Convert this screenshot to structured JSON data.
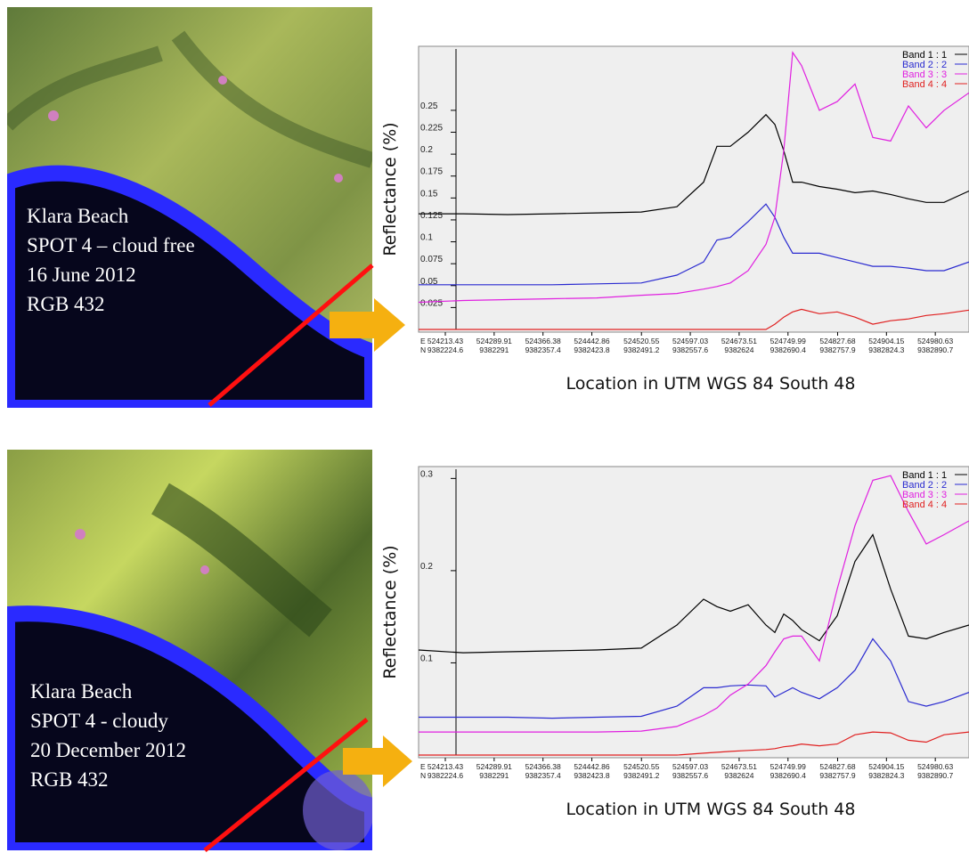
{
  "images": [
    {
      "lines": [
        "Klara Beach",
        "SPOT 4 – cloud free",
        "16 June 2012",
        "RGB 432"
      ]
    },
    {
      "lines": [
        "Klara Beach",
        "SPOT 4 - cloudy",
        "20 December 2012",
        "RGB 432"
      ]
    }
  ],
  "chart_data": [
    {
      "type": "line",
      "y_label": "Reflectance (%)",
      "x_label": "Location in UTM WGS 84 South 48",
      "x_row_labels": [
        "E",
        "N"
      ],
      "xlim": [
        524171.6,
        525033.4
      ],
      "xticks": [
        524213.43,
        524289.91,
        524366.38,
        524442.86,
        524520.55,
        524597.03,
        524673.51,
        524749.99,
        524827.68,
        524904.15,
        524980.63
      ],
      "xticks_n": [
        "9382224.6",
        "9382291",
        "9382357.4",
        "9382423.8",
        "9382491.2",
        "9382557.6",
        "9382624",
        "9382690.4",
        "9382757.9",
        "9382824.3",
        "9382890.7"
      ],
      "ylim": [
        0,
        0.32
      ],
      "yticks": [
        0.025,
        0.05,
        0.075,
        0.1,
        0.125,
        0.15,
        0.175,
        0.2,
        0.225,
        0.25
      ],
      "legend": "top-right",
      "x": [
        524171.6,
        524241.3,
        524311.0,
        524380.8,
        524450.5,
        524520.2,
        524576.0,
        524617.8,
        524638.7,
        524659.7,
        524687.6,
        524715.4,
        524729.4,
        524743.3,
        524757.3,
        524771.2,
        524799.1,
        524827.0,
        524854.9,
        524882.8,
        524910.7,
        524938.6,
        524966.5,
        524994.4,
        525033.4
      ],
      "series": [
        {
          "name": "Band 1 : 1",
          "color": "#000000",
          "values": [
            0.132,
            0.132,
            0.131,
            0.132,
            0.133,
            0.134,
            0.14,
            0.168,
            0.209,
            0.209,
            0.225,
            0.245,
            0.234,
            0.204,
            0.168,
            0.168,
            0.163,
            0.16,
            0.156,
            0.158,
            0.154,
            0.149,
            0.145,
            0.145,
            0.158
          ]
        },
        {
          "name": "Band 2 : 2",
          "color": "#2a2ad0",
          "values": [
            0.051,
            0.051,
            0.051,
            0.051,
            0.052,
            0.053,
            0.062,
            0.077,
            0.102,
            0.105,
            0.123,
            0.143,
            0.128,
            0.105,
            0.087,
            0.087,
            0.087,
            0.082,
            0.077,
            0.072,
            0.072,
            0.07,
            0.067,
            0.067,
            0.077
          ]
        },
        {
          "name": "Band 3 : 3",
          "color": "#e020e0",
          "values": [
            0.031,
            0.033,
            0.034,
            0.035,
            0.036,
            0.039,
            0.041,
            0.046,
            0.049,
            0.053,
            0.067,
            0.097,
            0.128,
            0.204,
            0.316,
            0.301,
            0.25,
            0.26,
            0.28,
            0.219,
            0.215,
            0.255,
            0.23,
            0.25,
            0.27
          ]
        },
        {
          "name": "Band 4 : 4",
          "color": "#e02020",
          "values": [
            0,
            0,
            0,
            0,
            0,
            0,
            0,
            0,
            0,
            0,
            0,
            0,
            0.006,
            0.014,
            0.02,
            0.023,
            0.018,
            0.02,
            0.014,
            0.006,
            0.01,
            0.012,
            0.016,
            0.018,
            0.022
          ]
        }
      ]
    },
    {
      "type": "line",
      "y_label": "Reflectance (%)",
      "x_label": "Location in UTM WGS 84 South 48",
      "x_row_labels": [
        "E",
        "N"
      ],
      "xlim": [
        524171.6,
        525033.4
      ],
      "xticks": [
        524213.43,
        524289.91,
        524366.38,
        524442.86,
        524520.55,
        524597.03,
        524673.51,
        524749.99,
        524827.68,
        524904.15,
        524980.63
      ],
      "xticks_n": [
        "9382224.6",
        "9382291",
        "9382357.4",
        "9382423.8",
        "9382491.2",
        "9382557.6",
        "9382624",
        "9382690.4",
        "9382757.9",
        "9382824.3",
        "9382890.7"
      ],
      "ylim": [
        0,
        0.31
      ],
      "yticks": [
        0.1,
        0.2,
        0.3
      ],
      "legend": "top-right",
      "x": [
        524171.6,
        524241.3,
        524311.0,
        524380.8,
        524450.5,
        524520.2,
        524576.0,
        524617.8,
        524638.7,
        524659.7,
        524687.6,
        524715.4,
        524729.4,
        524743.3,
        524757.3,
        524771.2,
        524799.1,
        524827.0,
        524854.9,
        524882.8,
        524910.7,
        524938.6,
        524966.5,
        524994.4,
        525033.4
      ],
      "series": [
        {
          "name": "Band 1 : 1",
          "color": "#000000",
          "values": [
            0.114,
            0.111,
            0.112,
            0.113,
            0.114,
            0.116,
            0.141,
            0.169,
            0.161,
            0.156,
            0.163,
            0.141,
            0.133,
            0.153,
            0.146,
            0.136,
            0.124,
            0.151,
            0.21,
            0.239,
            0.18,
            0.129,
            0.126,
            0.133,
            0.141
          ]
        },
        {
          "name": "Band 2 : 2",
          "color": "#2a2ad0",
          "values": [
            0.041,
            0.041,
            0.041,
            0.04,
            0.041,
            0.042,
            0.053,
            0.073,
            0.073,
            0.075,
            0.076,
            0.075,
            0.063,
            0.068,
            0.073,
            0.068,
            0.061,
            0.073,
            0.092,
            0.126,
            0.102,
            0.058,
            0.053,
            0.058,
            0.068
          ]
        },
        {
          "name": "Band 3 : 3",
          "color": "#e020e0",
          "values": [
            0.025,
            0.025,
            0.025,
            0.025,
            0.025,
            0.026,
            0.031,
            0.043,
            0.051,
            0.065,
            0.077,
            0.097,
            0.112,
            0.126,
            0.129,
            0.129,
            0.102,
            0.18,
            0.249,
            0.298,
            0.303,
            0.264,
            0.229,
            0.239,
            0.254
          ]
        },
        {
          "name": "Band 4 : 4",
          "color": "#e02020",
          "values": [
            0,
            0,
            0,
            0,
            0,
            0,
            0,
            0.002,
            0.003,
            0.004,
            0.005,
            0.006,
            0.007,
            0.009,
            0.01,
            0.012,
            0.01,
            0.012,
            0.022,
            0.025,
            0.024,
            0.016,
            0.014,
            0.022,
            0.025
          ]
        }
      ]
    }
  ]
}
